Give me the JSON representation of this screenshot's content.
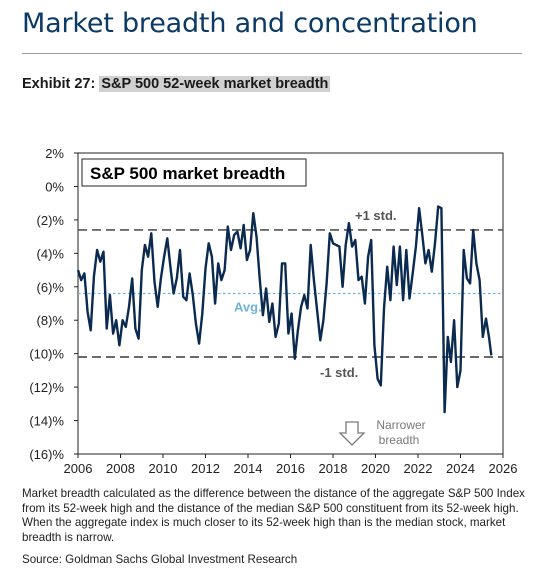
{
  "header": {
    "title": "Market breadth and concentration",
    "exhibit_label": "Exhibit 27:",
    "exhibit_title": "S&P 500 52-week market breadth"
  },
  "colors": {
    "title": "#0b3a66",
    "series": "#0b2a4f",
    "avg_line": "#6fb3dc",
    "std_lines": "#555555"
  },
  "chart_data": {
    "type": "line",
    "title": "S&P 500 market breadth",
    "xlim": [
      2006,
      2026
    ],
    "ylim": [
      -16,
      2
    ],
    "x_ticks": [
      2006,
      2008,
      2010,
      2012,
      2014,
      2016,
      2018,
      2020,
      2022,
      2024,
      2026
    ],
    "y_ticks": [
      2,
      0,
      -2,
      -4,
      -6,
      -8,
      -10,
      -12,
      -14,
      -16
    ],
    "y_tick_labels": [
      "2%",
      "0%",
      "(2)%",
      "(4)%",
      "(6)%",
      "(8)%",
      "(10)%",
      "(12)%",
      "(14)%",
      "(16)%"
    ],
    "grid": false,
    "reference_lines": [
      {
        "label": "+1 std.",
        "value": -2.6,
        "style": "dashed"
      },
      {
        "label": "Avg.",
        "value": -6.4,
        "style": "dotted"
      },
      {
        "label": "-1 std.",
        "value": -10.2,
        "style": "dashed"
      }
    ],
    "annotation": "Narrower breadth",
    "series": [
      {
        "x": [
          2006.0,
          2006.15,
          2006.3,
          2006.45,
          2006.6,
          2006.75,
          2006.9,
          2007.05,
          2007.2,
          2007.35,
          2007.5,
          2007.65,
          2007.8,
          2007.95,
          2008.1,
          2008.25,
          2008.4,
          2008.55,
          2008.7,
          2008.85,
          2009.0,
          2009.15,
          2009.3,
          2009.45,
          2009.6,
          2009.75,
          2009.9,
          2010.05,
          2010.2,
          2010.35,
          2010.5,
          2010.65,
          2010.8,
          2010.95,
          2011.1,
          2011.25,
          2011.4,
          2011.55,
          2011.7,
          2011.85,
          2012.0,
          2012.15,
          2012.3,
          2012.45,
          2012.6,
          2012.75,
          2012.9,
          2013.05,
          2013.2,
          2013.35,
          2013.5,
          2013.65,
          2013.8,
          2013.95,
          2014.1,
          2014.25,
          2014.4,
          2014.55,
          2014.7,
          2014.85,
          2015.0,
          2015.15,
          2015.3,
          2015.45,
          2015.6,
          2015.75,
          2015.9,
          2016.05,
          2016.2,
          2016.35,
          2016.5,
          2016.65,
          2016.8,
          2016.95,
          2017.1,
          2017.25,
          2017.4,
          2017.55,
          2017.7,
          2017.85,
          2018.0,
          2018.15,
          2018.3,
          2018.45,
          2018.6,
          2018.75,
          2018.9,
          2019.05,
          2019.2,
          2019.35,
          2019.5,
          2019.65,
          2019.8,
          2019.95,
          2020.1,
          2020.25,
          2020.4,
          2020.55,
          2020.7,
          2020.85,
          2021.0,
          2021.15,
          2021.3,
          2021.45,
          2021.6,
          2021.75,
          2021.9,
          2022.05,
          2022.2,
          2022.35,
          2022.5,
          2022.65,
          2022.8,
          2022.95,
          2023.1,
          2023.25,
          2023.4,
          2023.55,
          2023.7,
          2023.85,
          2024.0,
          2024.15,
          2024.3,
          2024.45,
          2024.6,
          2024.75,
          2024.9,
          2025.05,
          2025.2,
          2025.35,
          2025.45
        ],
        "y": [
          -5.0,
          -5.6,
          -5.2,
          -7.5,
          -8.6,
          -5.4,
          -3.8,
          -4.5,
          -3.9,
          -8.5,
          -6.5,
          -8.8,
          -8.0,
          -9.5,
          -8.0,
          -8.4,
          -7.2,
          -5.5,
          -8.5,
          -9.1,
          -5.0,
          -3.5,
          -4.2,
          -2.8,
          -5.7,
          -7.2,
          -5.5,
          -4.2,
          -3.1,
          -4.8,
          -6.4,
          -5.5,
          -3.8,
          -6.6,
          -6.8,
          -5.2,
          -6.5,
          -8.2,
          -9.4,
          -7.6,
          -4.9,
          -3.4,
          -4.2,
          -7.0,
          -4.6,
          -5.6,
          -5.0,
          -2.4,
          -3.8,
          -2.9,
          -2.7,
          -3.7,
          -2.3,
          -4.4,
          -3.8,
          -1.6,
          -3.0,
          -5.5,
          -7.7,
          -6.1,
          -8.1,
          -7.0,
          -9.0,
          -8.2,
          -4.6,
          -4.6,
          -8.8,
          -7.6,
          -10.3,
          -8.6,
          -7.2,
          -6.5,
          -7.3,
          -3.5,
          -5.6,
          -7.4,
          -9.2,
          -8.0,
          -5.8,
          -2.8,
          -3.4,
          -3.5,
          -3.6,
          -6.0,
          -3.5,
          -2.2,
          -3.6,
          -3.2,
          -5.6,
          -5.4,
          -7.0,
          -4.2,
          -3.2,
          -9.5,
          -11.5,
          -11.9,
          -7.3,
          -4.8,
          -6.8,
          -3.6,
          -5.9,
          -3.6,
          -6.8,
          -3.8,
          -6.7,
          -5.2,
          -3.6,
          -1.3,
          -2.9,
          -4.6,
          -3.8,
          -5.1,
          -3.4,
          -1.2,
          -1.3,
          -13.5,
          -9.0,
          -10.5,
          -8.0,
          -12.0,
          -11.0,
          -3.8,
          -5.5,
          -5.8,
          -2.6,
          -4.6,
          -5.6,
          -9.0,
          -7.9,
          -9.1,
          -10.1
        ]
      }
    ]
  },
  "footnote": "Market breadth calculated as the difference between the distance of the aggregate S&P 500 Index from its 52-week high and the distance of the median S&P 500 constituent from its 52-week high. When the aggregate index is much closer to its 52-week high than is the median stock, market breadth is narrow.",
  "source": "Source: Goldman Sachs Global Investment Research"
}
